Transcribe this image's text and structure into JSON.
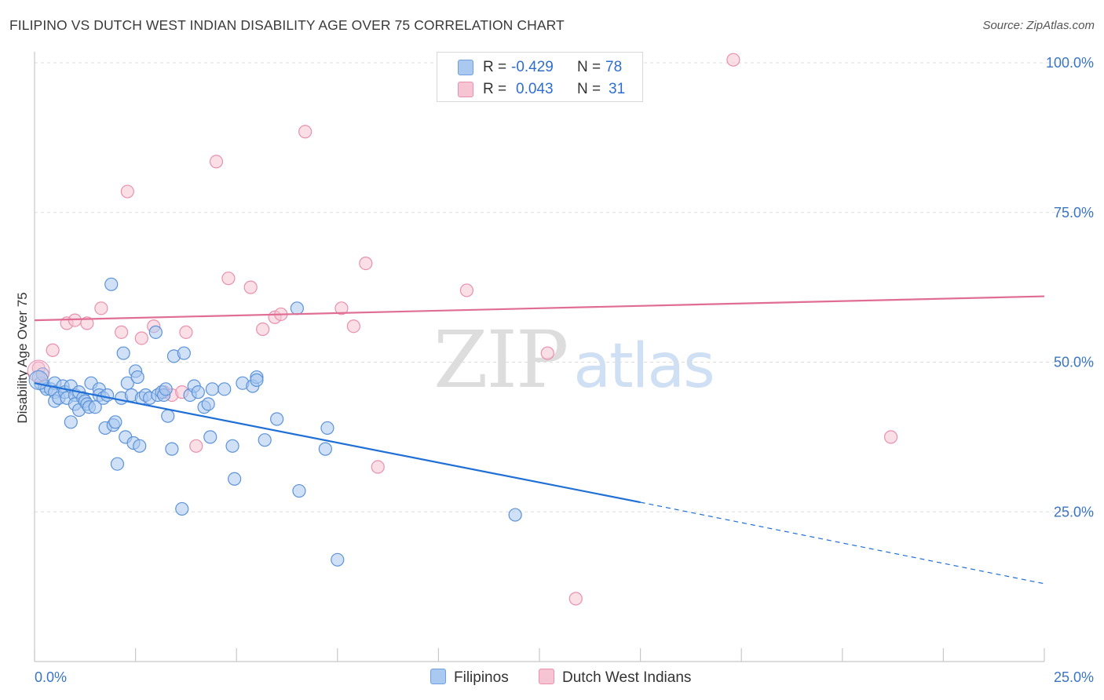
{
  "title": "FILIPINO VS DUTCH WEST INDIAN DISABILITY AGE OVER 75 CORRELATION CHART",
  "source": "Source: ZipAtlas.com",
  "watermark": {
    "zip": "ZIP",
    "atlas": "atlas"
  },
  "legend": {
    "rows": [
      {
        "r_label": "R =",
        "r_value": "-0.429",
        "n_label": "N =",
        "n_value": "78",
        "color": "#a9c9f0",
        "border": "#6fa0dd"
      },
      {
        "r_label": "R =",
        "r_value": "0.043",
        "n_label": "N =",
        "n_value": "31",
        "color": "#f7c4d4",
        "border": "#e890ad"
      }
    ]
  },
  "bottom_legend": {
    "series1": "Filipinos",
    "series2": "Dutch West Indians"
  },
  "colors": {
    "blue_fill": "#a9c9f0",
    "blue_stroke": "#5b92d8",
    "blue_line": "#1f6fd6",
    "pink_fill": "#f7c4d4",
    "pink_stroke": "#e890ad",
    "pink_line": "#e06d94",
    "axis_label": "#3a75c4",
    "grid": "#dddddd"
  },
  "chart_data": {
    "type": "scatter",
    "title": "FILIPINO VS DUTCH WEST INDIAN DISABILITY AGE OVER 75 CORRELATION CHART",
    "xlabel": "",
    "ylabel": "Disability Age Over 75",
    "xlim": [
      0,
      25
    ],
    "ylim": [
      0,
      102
    ],
    "x_tick_labels": [
      "0.0%",
      "25.0%"
    ],
    "y_tick_labels": [
      "25.0%",
      "50.0%",
      "75.0%",
      "100.0%"
    ],
    "y_ticks": [
      25,
      50,
      75,
      100
    ],
    "grid": "horizontal dashed",
    "legend_position": "top-center",
    "series": [
      {
        "name": "Filipinos",
        "r": -0.429,
        "n": 78,
        "trend": {
          "x0": 0,
          "y0": 46.5,
          "x1": 15,
          "y1": 26.6,
          "dash_to_x": 25,
          "dash_to_y": 13.0
        },
        "points": [
          [
            0.1,
            47.5
          ],
          [
            0.15,
            46.5
          ],
          [
            0.2,
            48.0
          ],
          [
            0.25,
            46.0
          ],
          [
            0.3,
            45.5
          ],
          [
            0.4,
            45.5
          ],
          [
            0.5,
            46.5
          ],
          [
            0.5,
            45.0
          ],
          [
            0.5,
            43.5
          ],
          [
            0.6,
            44.0
          ],
          [
            0.7,
            46.0
          ],
          [
            0.75,
            45.0
          ],
          [
            0.8,
            44.0
          ],
          [
            0.9,
            40.0
          ],
          [
            0.9,
            46.0
          ],
          [
            1.0,
            44.5
          ],
          [
            1.0,
            43.0
          ],
          [
            1.1,
            45.0
          ],
          [
            1.1,
            42.0
          ],
          [
            1.2,
            44.0
          ],
          [
            1.25,
            43.5
          ],
          [
            1.3,
            43.0
          ],
          [
            1.35,
            42.5
          ],
          [
            1.4,
            46.5
          ],
          [
            1.5,
            42.5
          ],
          [
            1.6,
            45.5
          ],
          [
            1.6,
            44.5
          ],
          [
            1.7,
            44.0
          ],
          [
            1.75,
            39.0
          ],
          [
            1.8,
            44.5
          ],
          [
            1.9,
            63.0
          ],
          [
            1.95,
            39.5
          ],
          [
            2.0,
            40.0
          ],
          [
            2.05,
            33.0
          ],
          [
            2.15,
            44.0
          ],
          [
            2.2,
            51.5
          ],
          [
            2.25,
            37.5
          ],
          [
            2.3,
            46.5
          ],
          [
            2.4,
            44.5
          ],
          [
            2.45,
            36.5
          ],
          [
            2.5,
            48.5
          ],
          [
            2.55,
            47.5
          ],
          [
            2.6,
            36.0
          ],
          [
            2.65,
            44.0
          ],
          [
            2.75,
            44.5
          ],
          [
            2.85,
            44.0
          ],
          [
            3.0,
            55.0
          ],
          [
            3.05,
            44.5
          ],
          [
            3.15,
            45.0
          ],
          [
            3.2,
            44.5
          ],
          [
            3.25,
            45.5
          ],
          [
            3.3,
            41.0
          ],
          [
            3.4,
            35.5
          ],
          [
            3.45,
            51.0
          ],
          [
            3.7,
            51.5
          ],
          [
            3.65,
            25.5
          ],
          [
            3.85,
            44.5
          ],
          [
            3.95,
            46.0
          ],
          [
            4.05,
            45.0
          ],
          [
            4.2,
            42.5
          ],
          [
            4.3,
            43.0
          ],
          [
            4.35,
            37.5
          ],
          [
            4.4,
            45.5
          ],
          [
            4.7,
            45.5
          ],
          [
            4.9,
            36.0
          ],
          [
            4.95,
            30.5
          ],
          [
            5.15,
            46.5
          ],
          [
            5.4,
            46.0
          ],
          [
            5.5,
            47.5
          ],
          [
            5.5,
            47.0
          ],
          [
            5.7,
            37.0
          ],
          [
            6.0,
            40.5
          ],
          [
            6.5,
            59.0
          ],
          [
            6.55,
            28.5
          ],
          [
            7.2,
            35.5
          ],
          [
            7.25,
            39.0
          ],
          [
            7.5,
            17.0
          ],
          [
            11.9,
            24.5
          ]
        ]
      },
      {
        "name": "Dutch West Indians",
        "r": 0.043,
        "n": 31,
        "trend": {
          "x0": 0,
          "y0": 57.0,
          "x1": 25,
          "y1": 61.0
        },
        "points": [
          [
            0.1,
            49.0
          ],
          [
            0.45,
            52.0
          ],
          [
            0.8,
            56.5
          ],
          [
            1.0,
            57.0
          ],
          [
            1.3,
            56.5
          ],
          [
            1.65,
            59.0
          ],
          [
            2.15,
            55.0
          ],
          [
            2.3,
            78.5
          ],
          [
            2.65,
            54.0
          ],
          [
            2.95,
            56.0
          ],
          [
            3.2,
            45.0
          ],
          [
            3.4,
            44.5
          ],
          [
            3.65,
            45.0
          ],
          [
            3.75,
            55.0
          ],
          [
            4.0,
            36.0
          ],
          [
            4.5,
            83.5
          ],
          [
            4.8,
            64.0
          ],
          [
            5.35,
            62.5
          ],
          [
            5.65,
            55.5
          ],
          [
            5.95,
            57.5
          ],
          [
            6.1,
            58.0
          ],
          [
            6.7,
            88.5
          ],
          [
            7.6,
            59.0
          ],
          [
            7.9,
            56.0
          ],
          [
            8.2,
            66.5
          ],
          [
            8.5,
            32.5
          ],
          [
            10.7,
            62.0
          ],
          [
            12.7,
            51.5
          ],
          [
            13.4,
            10.5
          ],
          [
            17.3,
            100.5
          ],
          [
            21.2,
            37.5
          ]
        ]
      }
    ]
  }
}
